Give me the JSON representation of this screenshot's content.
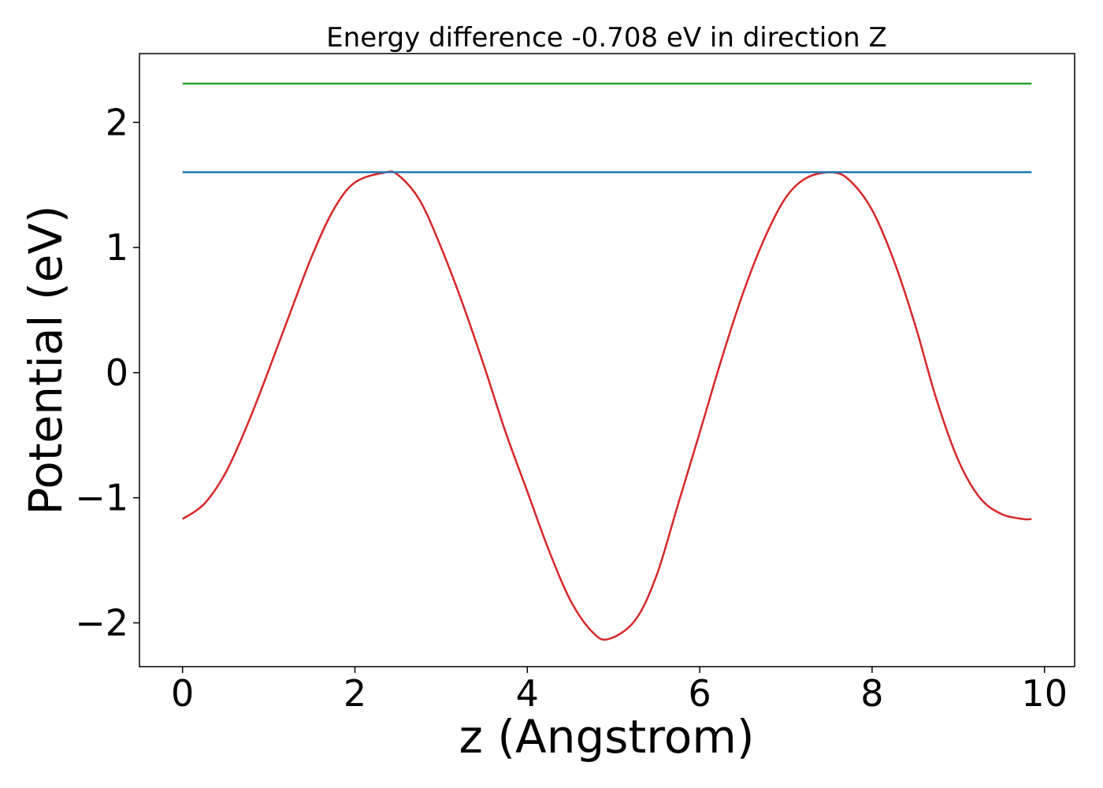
{
  "chart_data": {
    "type": "line",
    "title": "Energy difference -0.708 eV in direction Z",
    "xlabel": "z (Angstrom)",
    "ylabel": "Potential (eV)",
    "xlim": [
      -0.5,
      10.35
    ],
    "ylim": [
      -2.35,
      2.55
    ],
    "xticks": [
      0,
      2,
      4,
      6,
      8,
      10
    ],
    "xtick_labels": [
      "0",
      "2",
      "4",
      "6",
      "8",
      "10"
    ],
    "yticks": [
      -2,
      -1,
      0,
      1,
      2
    ],
    "ytick_labels": [
      "−2",
      "−1",
      "0",
      "1",
      "2"
    ],
    "grid": false,
    "series": [
      {
        "color": "#d62728",
        "x": [
          0.0,
          0.25,
          0.5,
          0.75,
          1.0,
          1.25,
          1.5,
          1.75,
          2.0,
          2.35,
          2.5,
          2.75,
          3.0,
          3.25,
          3.5,
          3.75,
          4.0,
          4.25,
          4.5,
          4.75,
          4.94,
          5.25,
          5.5,
          5.75,
          6.0,
          6.25,
          6.5,
          6.75,
          7.0,
          7.25,
          7.55,
          7.75,
          8.0,
          8.25,
          8.5,
          8.75,
          9.0,
          9.25,
          9.5,
          9.75,
          9.85
        ],
        "y": [
          -1.17,
          -1.05,
          -0.8,
          -0.42,
          0.02,
          0.48,
          0.93,
          1.3,
          1.52,
          1.6,
          1.58,
          1.38,
          1.0,
          0.55,
          0.05,
          -0.48,
          -0.95,
          -1.42,
          -1.82,
          -2.07,
          -2.13,
          -1.98,
          -1.62,
          -1.05,
          -0.48,
          0.1,
          0.63,
          1.07,
          1.4,
          1.56,
          1.6,
          1.53,
          1.3,
          0.9,
          0.38,
          -0.22,
          -0.7,
          -1.0,
          -1.13,
          -1.17,
          -1.17
        ]
      },
      {
        "color": "#1f77b4",
        "x": [
          0.0,
          9.85
        ],
        "y": [
          1.602,
          1.602
        ]
      },
      {
        "color": "#2ca02c",
        "x": [
          0.0,
          9.85
        ],
        "y": [
          2.31,
          2.31
        ]
      }
    ]
  }
}
